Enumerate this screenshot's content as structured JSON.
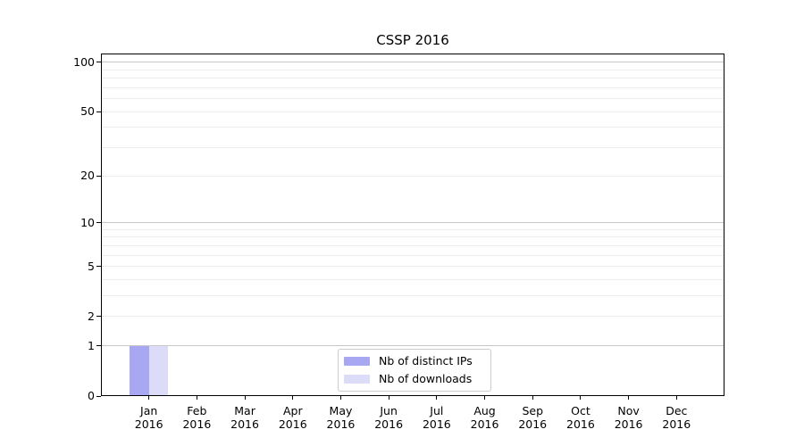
{
  "chart_data": {
    "type": "bar",
    "title": "CSSP 2016",
    "xlabel": "",
    "ylabel": "",
    "categories": [
      "Jan",
      "Feb",
      "Mar",
      "Apr",
      "May",
      "Jun",
      "Jul",
      "Aug",
      "Sep",
      "Oct",
      "Nov",
      "Dec"
    ],
    "year_label": "2016",
    "series": [
      {
        "name": "Nb of distinct IPs",
        "color": "#a8a8f2",
        "values": [
          1,
          0,
          0,
          0,
          0,
          0,
          0,
          0,
          0,
          0,
          0,
          0
        ]
      },
      {
        "name": "Nb of downloads",
        "color": "#dcdcf8",
        "values": [
          1,
          0,
          0,
          0,
          0,
          0,
          0,
          0,
          0,
          0,
          0,
          0
        ]
      }
    ],
    "yscale": "log1p",
    "ylim": [
      0,
      113
    ],
    "yticks": [
      0,
      1,
      2,
      5,
      10,
      20,
      50,
      100
    ],
    "major_gridlines": [
      1,
      10,
      100
    ],
    "minor_gridlines": [
      2,
      3,
      4,
      5,
      6,
      7,
      8,
      9,
      20,
      30,
      40,
      50,
      60,
      70,
      80,
      90
    ],
    "grid_on": true,
    "legend_position": "lower center",
    "colors": {
      "axis": "#000000",
      "grid_major": "#c6c6c6",
      "grid_minor": "#ececec",
      "background": "#ffffff"
    }
  }
}
